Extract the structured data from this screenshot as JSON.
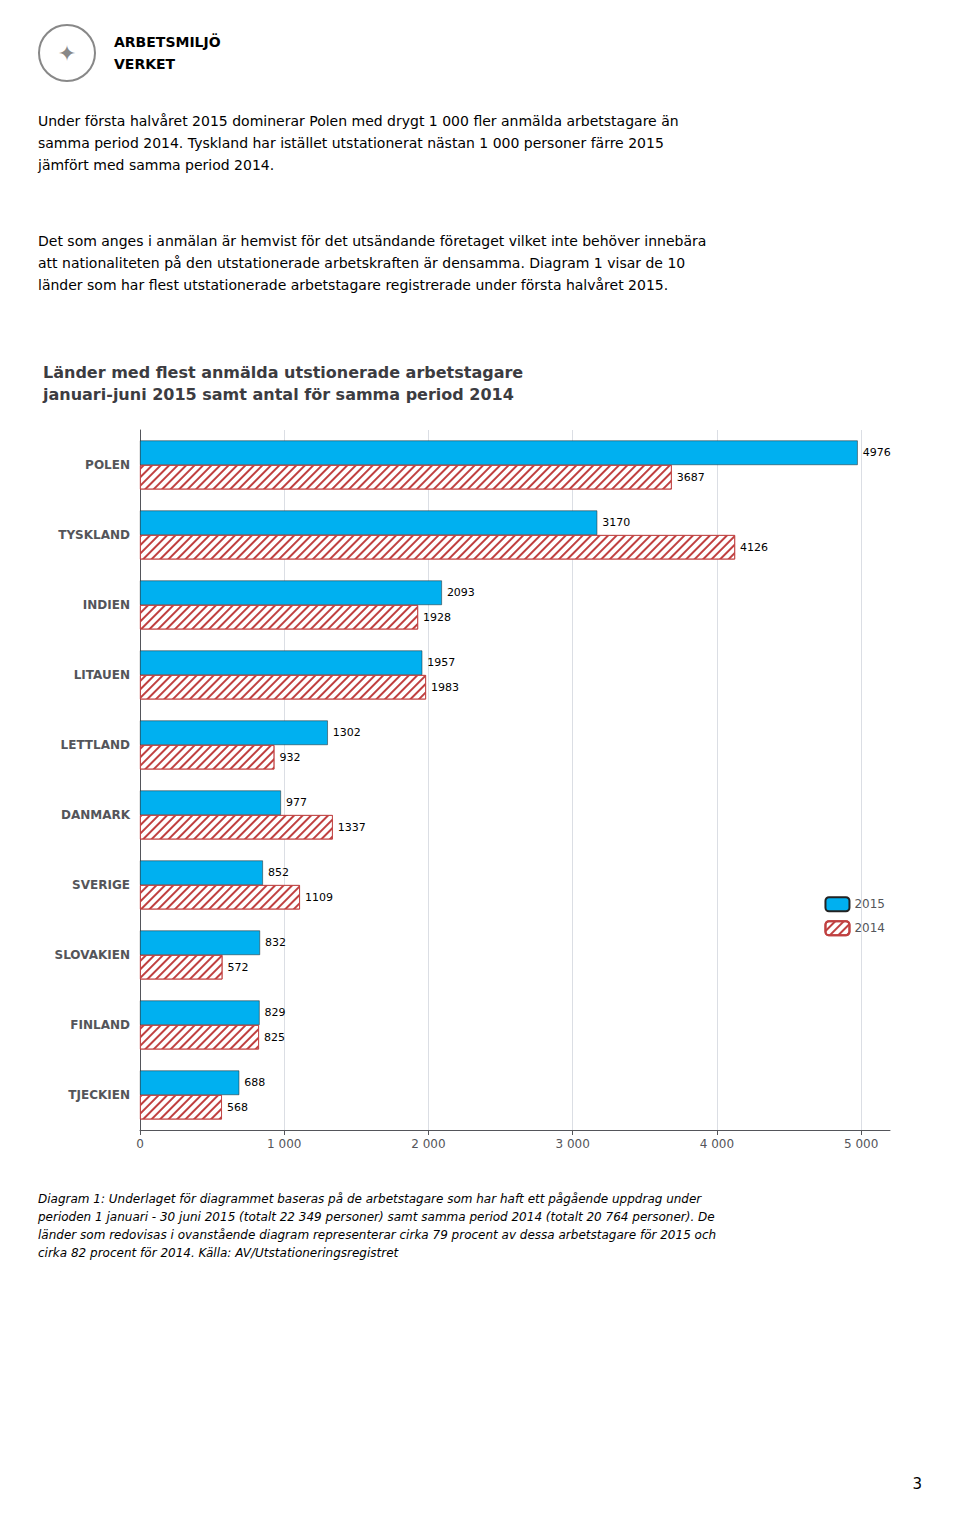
{
  "chart_data": {
    "type": "bar",
    "orientation": "horizontal",
    "title": "Länder med flest anmälda utstionerade arbetstagare\njanuari-juni 2015 samt antal för samma period 2014",
    "categories": [
      "TJECKIEN",
      "FINLAND",
      "SLOVAKIEN",
      "SVERIGE",
      "DANMARK",
      "LETTLAND",
      "LITAUEN",
      "INDIEN",
      "TYSKLAND",
      "POLEN"
    ],
    "series": [
      {
        "name": "2015",
        "color": "#00B0F0",
        "values": [
          688,
          829,
          832,
          852,
          977,
          1302,
          1957,
          2093,
          3170,
          4976
        ]
      },
      {
        "name": "2014",
        "color": "#C04040",
        "values": [
          568,
          825,
          572,
          1109,
          1337,
          932,
          1983,
          1928,
          4126,
          3687
        ]
      }
    ],
    "xlim": [
      0,
      5200
    ],
    "xticks": [
      0,
      {
        "value": 1000,
        "label": "1 000"
      },
      {
        "value": 2000,
        "label": "2 000"
      },
      {
        "value": 3000,
        "label": "3 000"
      },
      {
        "value": 4000,
        "label": "4 000"
      },
      {
        "value": 5000,
        "label": "5 000"
      }
    ],
    "grid": true,
    "legend": "right",
    "data_labels": true,
    "annotations": [
      "✦",
      "ARBETSMILJÖ",
      "VERKET",
      "Under första halvåret 2015 dominerar Polen med drygt 1 000 fler anmälda arbetstagare än\nsamma period 2014. Tyskland har istället utstationerat nästan 1 000 personer färre 2015\njämfört med samma period 2014.",
      "Det som anges i anmälan är hemvist för det utsändande företaget vilket inte behöver innebära\natt nationaliteten på den utstationerade arbetskraften är densamma. Diagram 1 visar de 10\nländer som har flest utstationerade arbetstagare registrerade under första halvåret 2015.",
      "Diagram 1: Underlaget för diagrammet baseras på de arbetstagare som har haft ett pågående uppdrag under\nperioden 1 januari - 30 juni 2015 (totalt 22 349 personer) samt samma period 2014 (totalt 20 764 personer). De\nländer som redovisas i ovanstående diagram representerar cirka 79 procent av dessa arbetstagare för 2015 och\ncirka 82 procent för 2014. Källa: AV/Utstationeringsregistret",
      "3"
    ]
  }
}
